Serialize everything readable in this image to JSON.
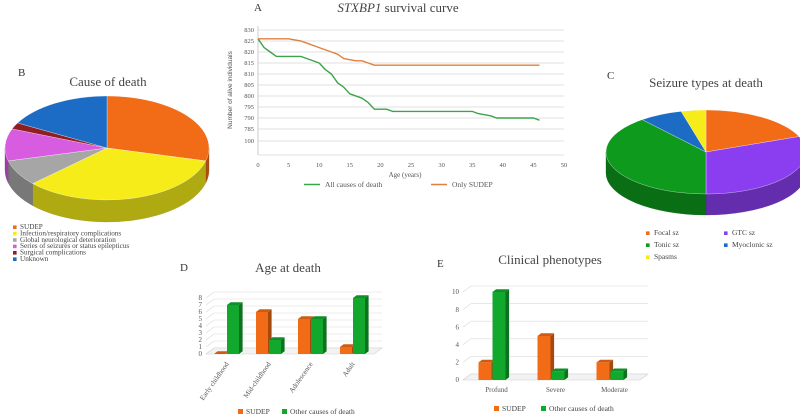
{
  "panels": {
    "A": {
      "letter": "A",
      "title_prefix": "",
      "title_gene": "STXBP1",
      "title_rest": " survival curve",
      "ylabel": "Number of alive individuals",
      "xlabel": "Age (years)",
      "legend": [
        "All causes of death",
        "Only SUDEP"
      ]
    },
    "B": {
      "letter": "B",
      "title": "Cause of death"
    },
    "C": {
      "letter": "C",
      "title": "Seizure types at death"
    },
    "D": {
      "letter": "D",
      "title": "Age at death"
    },
    "E": {
      "letter": "E",
      "title": "Clinical phenotypes"
    }
  },
  "chart_data": [
    {
      "id": "A",
      "type": "line",
      "title": "STXBP1 survival curve",
      "xlabel": "Age (years)",
      "ylabel": "Number of alive individuals",
      "xlim": [
        0,
        50
      ],
      "ylim": [
        100,
        830
      ],
      "x_ticks": [
        0,
        5,
        10,
        15,
        20,
        25,
        30,
        35,
        40,
        45,
        50
      ],
      "y_ticks_upper": [
        830,
        825,
        820,
        815,
        810,
        805,
        800,
        795,
        790,
        785
      ],
      "y_ticks_lower": [
        100
      ],
      "y_axis_break": true,
      "grid": true,
      "legend_position": "bottom",
      "series": [
        {
          "name": "All causes of death",
          "color": "#3ba34a",
          "points": [
            [
              0,
              826
            ],
            [
              1,
              822
            ],
            [
              2,
              820
            ],
            [
              3,
              818
            ],
            [
              5,
              818
            ],
            [
              7,
              818
            ],
            [
              8,
              817
            ],
            [
              10,
              815
            ],
            [
              11,
              812
            ],
            [
              12,
              810
            ],
            [
              13,
              806
            ],
            [
              14,
              804
            ],
            [
              15,
              801
            ],
            [
              17,
              799
            ],
            [
              18,
              797
            ],
            [
              19,
              794
            ],
            [
              21,
              794
            ],
            [
              22,
              793
            ],
            [
              25,
              793
            ],
            [
              30,
              793
            ],
            [
              35,
              793
            ],
            [
              36,
              792
            ],
            [
              38,
              791
            ],
            [
              39,
              790
            ],
            [
              40,
              790
            ],
            [
              45,
              790
            ],
            [
              46,
              789
            ]
          ]
        },
        {
          "name": "Only SUDEP",
          "color": "#e0803f",
          "points": [
            [
              0,
              826
            ],
            [
              1,
              826
            ],
            [
              5,
              826
            ],
            [
              7,
              825
            ],
            [
              8,
              824
            ],
            [
              10,
              822
            ],
            [
              12,
              820
            ],
            [
              13,
              819
            ],
            [
              14,
              817
            ],
            [
              16,
              816
            ],
            [
              17,
              816
            ],
            [
              18,
              815
            ],
            [
              19,
              814
            ],
            [
              25,
              814
            ],
            [
              30,
              814
            ],
            [
              35,
              814
            ],
            [
              40,
              814
            ],
            [
              45,
              814
            ],
            [
              46,
              814
            ]
          ]
        }
      ]
    },
    {
      "id": "B",
      "type": "pie",
      "title": "Cause of death",
      "legend_position": "bottom-left",
      "slices": [
        {
          "label": "SUDEP",
          "value": 29,
          "color": "#f26b16"
        },
        {
          "label": "Infection/respiratory complications",
          "value": 34,
          "color": "#f5ec19"
        },
        {
          "label": "Global neurological deterioration",
          "value": 8,
          "color": "#a6a6a6"
        },
        {
          "label": "Series of seizures or status epilepticus",
          "value": 10,
          "color": "#d75ce0"
        },
        {
          "label": "Surgical complications",
          "value": 2,
          "color": "#8f1d22"
        },
        {
          "label": "Unknown",
          "value": 17,
          "color": "#1c6bc4"
        }
      ]
    },
    {
      "id": "C",
      "type": "pie",
      "title": "Seizure types at death",
      "legend_position": "bottom",
      "slices": [
        {
          "label": "Focal sz",
          "value": 19,
          "color": "#f26b16"
        },
        {
          "label": "GTC sz",
          "value": 31,
          "color": "#8a3ef0"
        },
        {
          "label": "Tonic sz",
          "value": 39,
          "color": "#0e9a1c"
        },
        {
          "label": "Myoclonic sz",
          "value": 7,
          "color": "#1c6bc4"
        },
        {
          "label": "Spasms",
          "value": 4,
          "color": "#f5ec19"
        }
      ]
    },
    {
      "id": "D",
      "type": "bar",
      "title": "Age at death",
      "categories": [
        "Early childhood",
        "Mid-childhood",
        "Adolescence",
        "Adult"
      ],
      "ylim": [
        0,
        8
      ],
      "y_ticks": [
        0,
        1,
        2,
        3,
        4,
        5,
        6,
        7,
        8
      ],
      "grid": true,
      "legend_position": "bottom",
      "series": [
        {
          "name": "SUDEP",
          "values": [
            0,
            6,
            5,
            1
          ],
          "color": "#f26b16"
        },
        {
          "name": "Other causes of death",
          "values": [
            7,
            2,
            5,
            8
          ],
          "color": "#12a82e"
        }
      ]
    },
    {
      "id": "E",
      "type": "bar",
      "title": "Clinical phenotypes",
      "categories": [
        "Profund",
        "Severe",
        "Moderate"
      ],
      "ylim": [
        0,
        10
      ],
      "y_ticks": [
        0,
        2,
        4,
        6,
        8,
        10
      ],
      "grid": true,
      "legend_position": "bottom",
      "series": [
        {
          "name": "SUDEP",
          "values": [
            2,
            5,
            2
          ],
          "color": "#f26b16"
        },
        {
          "name": "Other causes of death",
          "values": [
            10,
            1,
            1
          ],
          "color": "#12a82e"
        }
      ]
    }
  ]
}
